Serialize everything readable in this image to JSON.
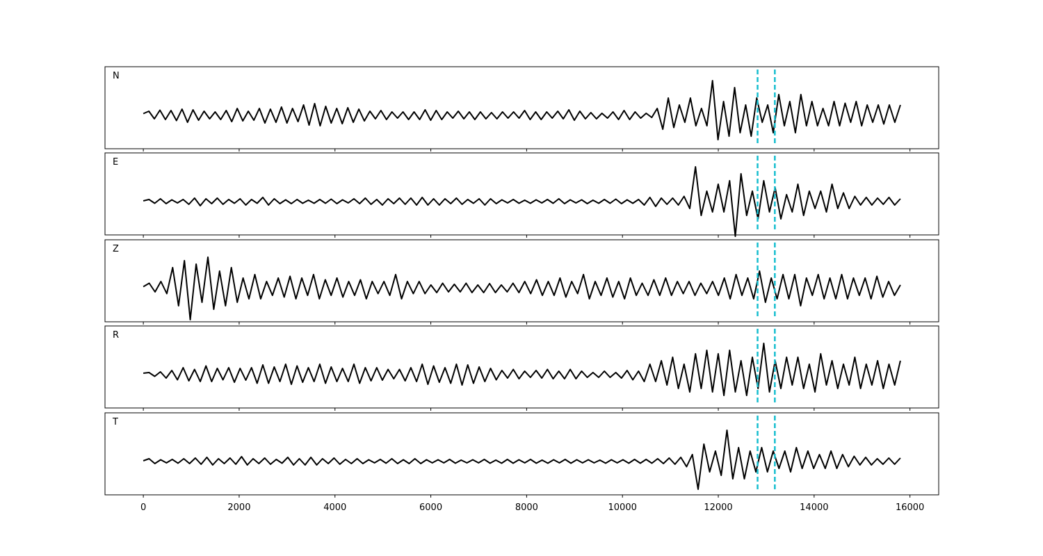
{
  "chart_data": {
    "type": "line",
    "title": "",
    "xlabel": "",
    "ylabel": "",
    "xlim": [
      -800,
      16600
    ],
    "ylim": [
      -1,
      1
    ],
    "grid": false,
    "x_ticks": [
      0,
      2000,
      4000,
      6000,
      8000,
      10000,
      12000,
      14000,
      16000
    ],
    "x_tick_labels": [
      "0",
      "2000",
      "4000",
      "6000",
      "8000",
      "10000",
      "12000",
      "14000",
      "16000"
    ],
    "trace_range": [
      0,
      15800
    ],
    "marker_lines": [
      12820,
      13180
    ],
    "colors": {
      "trace": "#000000",
      "marker": "#17becf"
    },
    "series": [
      {
        "name": "N",
        "label": "N",
        "values": [
          0.05,
          0.12,
          -0.1,
          0.15,
          -0.12,
          0.14,
          -0.15,
          0.18,
          -0.2,
          0.16,
          -0.14,
          0.12,
          -0.1,
          0.1,
          -0.12,
          0.14,
          -0.18,
          0.2,
          -0.16,
          0.12,
          -0.14,
          0.2,
          -0.22,
          0.18,
          -0.2,
          0.24,
          -0.22,
          0.2,
          -0.18,
          0.3,
          -0.28,
          0.34,
          -0.3,
          0.26,
          -0.22,
          0.2,
          -0.24,
          0.22,
          -0.2,
          0.18,
          -0.16,
          0.12,
          -0.1,
          0.14,
          -0.12,
          0.1,
          -0.08,
          0.1,
          -0.12,
          0.1,
          -0.12,
          0.16,
          -0.14,
          0.14,
          -0.12,
          0.1,
          -0.08,
          0.12,
          -0.1,
          0.1,
          -0.12,
          0.1,
          -0.1,
          0.08,
          -0.1,
          0.1,
          -0.08,
          0.1,
          -0.08,
          0.14,
          -0.12,
          0.1,
          -0.12,
          0.1,
          -0.08,
          0.12,
          -0.1,
          0.16,
          -0.14,
          0.12,
          -0.1,
          0.08,
          -0.1,
          0.06,
          -0.08,
          0.1,
          -0.12,
          0.14,
          -0.12,
          0.1,
          -0.08,
          0.06,
          -0.06,
          0.2,
          -0.4,
          0.5,
          -0.35,
          0.3,
          -0.2,
          0.5,
          -0.3,
          0.2,
          -0.3,
          1.0,
          -0.7,
          0.4,
          -0.6,
          0.8,
          -0.5,
          0.3,
          -0.6,
          0.5,
          -0.2,
          0.3,
          -0.5,
          0.6,
          -0.3,
          0.4,
          -0.5,
          0.6,
          -0.3,
          0.4,
          -0.3,
          0.2,
          -0.3,
          0.4,
          -0.3,
          0.35,
          -0.2,
          0.4,
          -0.3,
          0.3,
          -0.2,
          0.3,
          -0.25,
          0.3,
          -0.2,
          0.3
        ]
      },
      {
        "name": "E",
        "label": "E",
        "values": [
          0.02,
          0.06,
          -0.05,
          0.08,
          -0.06,
          0.05,
          -0.04,
          0.06,
          -0.08,
          0.1,
          -0.12,
          0.08,
          -0.06,
          0.1,
          -0.08,
          0.06,
          -0.05,
          0.08,
          -0.1,
          0.06,
          -0.05,
          0.12,
          -0.1,
          0.08,
          -0.06,
          0.05,
          -0.06,
          0.06,
          -0.05,
          0.04,
          -0.05,
          0.06,
          -0.05,
          0.07,
          -0.06,
          0.05,
          -0.04,
          0.08,
          -0.06,
          0.1,
          -0.08,
          0.06,
          -0.1,
          0.08,
          -0.06,
          0.1,
          -0.08,
          0.1,
          -0.1,
          0.12,
          -0.1,
          0.08,
          -0.1,
          0.08,
          -0.06,
          0.1,
          -0.08,
          0.06,
          -0.05,
          0.08,
          -0.1,
          0.08,
          -0.06,
          0.05,
          -0.04,
          0.06,
          -0.05,
          0.04,
          -0.05,
          0.05,
          -0.04,
          0.06,
          -0.05,
          0.08,
          -0.06,
          0.05,
          -0.04,
          0.05,
          -0.06,
          0.04,
          -0.05,
          0.06,
          -0.05,
          0.07,
          -0.06,
          0.05,
          -0.05,
          0.06,
          -0.1,
          0.12,
          -0.14,
          0.1,
          -0.08,
          0.1,
          -0.1,
          0.15,
          -0.2,
          1.0,
          -0.4,
          0.3,
          -0.3,
          0.5,
          -0.3,
          0.6,
          -1.0,
          0.8,
          -0.4,
          0.3,
          -0.5,
          0.6,
          -0.3,
          0.4,
          -0.5,
          0.2,
          -0.3,
          0.5,
          -0.4,
          0.3,
          -0.2,
          0.3,
          -0.3,
          0.5,
          -0.2,
          0.25,
          -0.2,
          0.15,
          -0.1,
          0.12,
          -0.1,
          0.1,
          -0.08,
          0.12,
          -0.1,
          0.08
        ]
      },
      {
        "name": "Z",
        "label": "Z",
        "values": [
          0.05,
          0.15,
          -0.1,
          0.2,
          -0.15,
          0.6,
          -0.5,
          0.8,
          -0.9,
          0.7,
          -0.4,
          0.9,
          -0.6,
          0.5,
          -0.5,
          0.6,
          -0.4,
          0.3,
          -0.3,
          0.4,
          -0.3,
          0.2,
          -0.2,
          0.3,
          -0.25,
          0.35,
          -0.3,
          0.3,
          -0.2,
          0.4,
          -0.3,
          0.25,
          -0.2,
          0.3,
          -0.25,
          0.2,
          -0.2,
          0.25,
          -0.3,
          0.2,
          -0.15,
          0.2,
          -0.2,
          0.4,
          -0.3,
          0.2,
          -0.15,
          0.2,
          -0.15,
          0.1,
          -0.12,
          0.15,
          -0.1,
          0.12,
          -0.1,
          0.15,
          -0.12,
          0.1,
          -0.12,
          0.14,
          -0.12,
          0.1,
          -0.1,
          0.15,
          -0.12,
          0.2,
          -0.15,
          0.25,
          -0.2,
          0.2,
          -0.2,
          0.3,
          -0.25,
          0.2,
          -0.15,
          0.4,
          -0.3,
          0.2,
          -0.2,
          0.3,
          -0.25,
          0.2,
          -0.3,
          0.3,
          -0.2,
          0.15,
          -0.2,
          0.25,
          -0.2,
          0.3,
          -0.2,
          0.2,
          -0.15,
          0.2,
          -0.2,
          0.15,
          -0.15,
          0.2,
          -0.2,
          0.3,
          -0.3,
          0.4,
          -0.2,
          0.3,
          -0.3,
          0.5,
          -0.4,
          0.3,
          -0.3,
          0.4,
          -0.3,
          0.4,
          -0.5,
          0.3,
          -0.2,
          0.4,
          -0.3,
          0.3,
          -0.3,
          0.4,
          -0.3,
          0.3,
          -0.2,
          0.3,
          -0.3,
          0.35,
          -0.25,
          0.2,
          -0.2,
          0.1
        ]
      },
      {
        "name": "R",
        "label": "R",
        "values": [
          0.04,
          0.06,
          -0.05,
          0.08,
          -0.1,
          0.12,
          -0.15,
          0.2,
          -0.18,
          0.15,
          -0.2,
          0.25,
          -0.2,
          0.18,
          -0.15,
          0.2,
          -0.22,
          0.18,
          -0.16,
          0.2,
          -0.25,
          0.28,
          -0.25,
          0.22,
          -0.2,
          0.3,
          -0.28,
          0.25,
          -0.22,
          0.2,
          -0.2,
          0.3,
          -0.25,
          0.22,
          -0.2,
          0.18,
          -0.2,
          0.3,
          -0.25,
          0.2,
          -0.18,
          0.2,
          -0.16,
          0.15,
          -0.12,
          0.15,
          -0.18,
          0.2,
          -0.2,
          0.3,
          -0.28,
          0.25,
          -0.22,
          0.2,
          -0.25,
          0.3,
          -0.3,
          0.28,
          -0.25,
          0.22,
          -0.2,
          0.18,
          -0.15,
          0.12,
          -0.1,
          0.15,
          -0.12,
          0.1,
          -0.08,
          0.12,
          -0.1,
          0.15,
          -0.12,
          0.1,
          -0.12,
          0.15,
          -0.12,
          0.1,
          -0.08,
          0.06,
          -0.08,
          0.1,
          -0.08,
          0.06,
          -0.1,
          0.12,
          -0.15,
          0.1,
          -0.2,
          0.3,
          -0.2,
          0.4,
          -0.3,
          0.5,
          -0.4,
          0.3,
          -0.5,
          0.6,
          -0.4,
          0.7,
          -0.5,
          0.6,
          -0.6,
          0.7,
          -0.5,
          0.4,
          -0.6,
          0.5,
          -0.4,
          0.9,
          -0.5,
          0.4,
          -0.4,
          0.5,
          -0.3,
          0.5,
          -0.4,
          0.3,
          -0.5,
          0.6,
          -0.3,
          0.4,
          -0.4,
          0.3,
          -0.3,
          0.5,
          -0.4,
          0.3,
          -0.3,
          0.4,
          -0.4,
          0.3,
          -0.3,
          0.4
        ]
      },
      {
        "name": "T",
        "label": "T",
        "values": [
          0.02,
          0.08,
          -0.06,
          0.05,
          -0.04,
          0.06,
          -0.05,
          0.08,
          -0.06,
          0.1,
          -0.08,
          0.12,
          -0.1,
          0.08,
          -0.06,
          0.1,
          -0.08,
          0.14,
          -0.1,
          0.08,
          -0.06,
          0.1,
          -0.08,
          0.06,
          -0.05,
          0.12,
          -0.1,
          0.08,
          -0.1,
          0.12,
          -0.1,
          0.08,
          -0.06,
          0.1,
          -0.08,
          0.06,
          -0.06,
          0.08,
          -0.06,
          0.05,
          -0.04,
          0.06,
          -0.05,
          0.08,
          -0.06,
          0.05,
          -0.06,
          0.08,
          -0.06,
          0.05,
          -0.04,
          0.05,
          -0.04,
          0.06,
          -0.05,
          0.04,
          -0.04,
          0.05,
          -0.04,
          0.06,
          -0.05,
          0.04,
          -0.05,
          0.06,
          -0.05,
          0.05,
          -0.04,
          0.06,
          -0.05,
          0.04,
          -0.05,
          0.05,
          -0.04,
          0.06,
          -0.05,
          0.05,
          -0.04,
          0.05,
          -0.04,
          0.04,
          -0.05,
          0.05,
          -0.04,
          0.05,
          -0.05,
          0.06,
          -0.05,
          0.06,
          -0.05,
          0.08,
          -0.06,
          0.1,
          -0.08,
          0.12,
          -0.15,
          0.2,
          -0.8,
          0.5,
          -0.3,
          0.3,
          -0.4,
          0.9,
          -0.5,
          0.4,
          -0.5,
          0.3,
          -0.3,
          0.4,
          -0.3,
          0.3,
          -0.2,
          0.3,
          -0.3,
          0.4,
          -0.2,
          0.3,
          -0.2,
          0.2,
          -0.2,
          0.3,
          -0.2,
          0.2,
          -0.15,
          0.15,
          -0.1,
          0.12,
          -0.1,
          0.08,
          -0.08,
          0.1,
          -0.08,
          0.1
        ]
      }
    ]
  }
}
